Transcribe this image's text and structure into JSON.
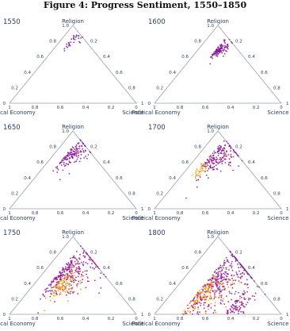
{
  "figure_title": "Figure 4: Progress Sentiment, 1550–1850",
  "colors": {
    "purple": "#7b1fa2",
    "magenta": "#b5127a",
    "orange": "#f08a1c",
    "yellow": "#ffd21f",
    "axis": "#9aa0a6",
    "text": "#2a3f5f"
  },
  "chart_data": [
    {
      "type": "ternary",
      "panel": "1550",
      "axes": {
        "top": "Religion",
        "left": "Political Economy",
        "right": "Science"
      },
      "ticks": {
        "top": [
          "1.0",
          "0.8",
          "0.6",
          "0.4",
          "0.2",
          "0"
        ],
        "left": [
          "1",
          "0.8",
          "0.6",
          "0.4",
          "0.2",
          "0"
        ],
        "right": [
          "0.2",
          "0.4",
          "0.6",
          "0.8",
          "1"
        ]
      },
      "clusters": [
        {
          "religion": 0.8,
          "science": 0.07,
          "spread": 0.06,
          "n": 30,
          "palette": [
            "purple"
          ]
        }
      ]
    },
    {
      "type": "ternary",
      "panel": "1600",
      "axes": {
        "top": "Religion",
        "left": "Political Economy",
        "right": "Science"
      },
      "ticks": {
        "top": [
          "1.0",
          "0.8",
          "0.6",
          "0.4",
          "0.2",
          "0"
        ],
        "left": [
          "1",
          "0.8",
          "0.6",
          "0.4",
          "0.2",
          "0"
        ],
        "right": [
          "0.2",
          "0.4",
          "0.6",
          "0.8",
          "1"
        ]
      },
      "clusters": [
        {
          "religion": 0.68,
          "science": 0.14,
          "spread": 0.05,
          "n": 120,
          "palette": [
            "purple",
            "purple",
            "magenta"
          ]
        }
      ]
    },
    {
      "type": "ternary",
      "panel": "1650",
      "axes": {
        "top": "Religion",
        "left": "Political Economy",
        "right": "Science"
      },
      "ticks": {
        "top": [
          "1.0",
          "0.8",
          "0.6",
          "0.4",
          "0.2",
          "0"
        ],
        "left": [
          "1",
          "0.8",
          "0.6",
          "0.4",
          "0.2",
          "0"
        ],
        "right": [
          "0.2",
          "0.4",
          "0.6",
          "0.8",
          "1"
        ]
      },
      "clusters": [
        {
          "religion": 0.68,
          "science": 0.1,
          "spread": 0.09,
          "n": 150,
          "palette": [
            "purple",
            "purple",
            "purple",
            "magenta"
          ]
        }
      ]
    },
    {
      "type": "ternary",
      "panel": "1700",
      "axes": {
        "top": "Religion",
        "left": "Political Economy",
        "right": "Science"
      },
      "ticks": {
        "top": [
          "1.0",
          "0.8",
          "0.6",
          "0.4",
          "0.2",
          "0"
        ],
        "left": [
          "1",
          "0.8",
          "0.6",
          "0.4",
          "0.2",
          "0"
        ],
        "right": [
          "0.2",
          "0.4",
          "0.6",
          "0.8",
          "1"
        ]
      },
      "clusters": [
        {
          "religion": 0.62,
          "science": 0.1,
          "spread": 0.12,
          "n": 190,
          "palette": [
            "purple",
            "purple",
            "magenta"
          ]
        },
        {
          "religion": 0.5,
          "science": 0.08,
          "spread": 0.06,
          "n": 40,
          "palette": [
            "orange",
            "yellow"
          ]
        }
      ]
    },
    {
      "type": "ternary",
      "panel": "1750",
      "axes": {
        "top": "Religion",
        "left": "Political Economy",
        "right": "Science"
      },
      "ticks": {
        "top": [
          "1.0",
          "0.8",
          "0.6",
          "0.4",
          "0.2",
          "0"
        ],
        "left": [
          "1",
          "0.8",
          "0.6",
          "0.4",
          "0.2",
          "0"
        ],
        "right": [
          "0.2",
          "0.4",
          "0.6",
          "0.8",
          "1"
        ]
      },
      "clusters": [
        {
          "religion": 0.52,
          "science": 0.12,
          "spread": 0.16,
          "n": 300,
          "palette": [
            "purple",
            "purple",
            "magenta",
            "magenta"
          ]
        },
        {
          "religion": 0.38,
          "science": 0.18,
          "spread": 0.1,
          "n": 120,
          "palette": [
            "orange",
            "yellow",
            "orange"
          ]
        }
      ]
    },
    {
      "type": "ternary",
      "panel": "1800",
      "axes": {
        "top": "Religion",
        "left": "Political Economy",
        "right": "Science"
      },
      "ticks": {
        "top": [
          "1.0",
          "0.8",
          "0.6",
          "0.4",
          "0.2",
          "0"
        ],
        "left": [
          "1",
          "0.8",
          "0.6",
          "0.4",
          "0.2",
          "0"
        ],
        "right": [
          "0.2",
          "0.4",
          "0.6",
          "0.8",
          "1"
        ]
      },
      "clusters": [
        {
          "religion": 0.45,
          "science": 0.2,
          "spread": 0.2,
          "n": 320,
          "palette": [
            "purple",
            "purple",
            "magenta"
          ]
        },
        {
          "religion": 0.25,
          "science": 0.2,
          "spread": 0.14,
          "n": 200,
          "palette": [
            "orange",
            "yellow",
            "orange",
            "magenta"
          ]
        },
        {
          "religion": 0.12,
          "science": 0.55,
          "spread": 0.1,
          "n": 80,
          "palette": [
            "purple",
            "magenta"
          ]
        }
      ]
    }
  ]
}
